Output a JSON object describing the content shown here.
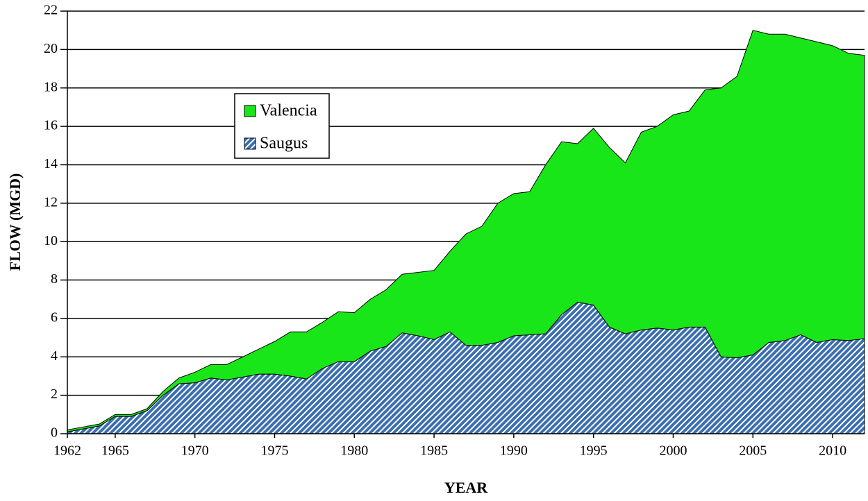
{
  "chart_data": {
    "type": "stacked_area",
    "x_label": "YEAR",
    "y_label": "FLOW (MGD)",
    "x": [
      1962,
      1963,
      1964,
      1965,
      1966,
      1967,
      1968,
      1969,
      1970,
      1971,
      1972,
      1973,
      1974,
      1975,
      1976,
      1977,
      1978,
      1979,
      1980,
      1981,
      1982,
      1983,
      1984,
      1985,
      1986,
      1987,
      1988,
      1989,
      1990,
      1991,
      1992,
      1993,
      1994,
      1995,
      1996,
      1997,
      1998,
      1999,
      2000,
      2001,
      2002,
      2003,
      2004,
      2005,
      2006,
      2007,
      2008,
      2009,
      2010,
      2011,
      2012
    ],
    "series": [
      {
        "name": "Saugus",
        "color": "#3a6eb0",
        "values": [
          0.1,
          0.25,
          0.4,
          0.9,
          0.9,
          1.2,
          2.0,
          2.6,
          2.65,
          2.9,
          2.8,
          2.95,
          3.1,
          3.1,
          3.0,
          2.85,
          3.4,
          3.75,
          3.75,
          4.3,
          4.55,
          5.25,
          5.1,
          4.9,
          5.3,
          4.6,
          4.6,
          4.75,
          5.1,
          5.15,
          5.2,
          6.2,
          6.85,
          6.7,
          5.55,
          5.2,
          5.4,
          5.5,
          5.4,
          5.55,
          5.55,
          4.0,
          3.95,
          4.1,
          4.75,
          4.85,
          5.15,
          4.75,
          4.9,
          4.85,
          4.95
        ]
      },
      {
        "name": "Valencia",
        "color": "#19e619",
        "values": [
          0.1,
          0.1,
          0.1,
          0.1,
          0.1,
          0.1,
          0.2,
          0.3,
          0.55,
          0.7,
          0.8,
          1.05,
          1.3,
          1.7,
          2.3,
          2.45,
          2.4,
          2.6,
          2.55,
          2.7,
          2.95,
          3.05,
          3.3,
          3.6,
          4.2,
          5.8,
          6.2,
          7.25,
          7.4,
          7.45,
          8.8,
          9.0,
          8.25,
          9.2,
          9.35,
          8.9,
          10.3,
          10.5,
          11.2,
          11.25,
          12.35,
          14.0,
          14.65,
          16.9,
          16.05,
          15.95,
          15.45,
          15.65,
          15.3,
          14.95,
          14.75
        ]
      }
    ],
    "xlim": [
      1962,
      2012
    ],
    "xticks": [
      1962,
      1965,
      1970,
      1975,
      1980,
      1985,
      1990,
      1995,
      2000,
      2005,
      2010
    ],
    "ylim": [
      0,
      22
    ],
    "yticks": [
      0,
      2,
      4,
      6,
      8,
      10,
      12,
      14,
      16,
      18,
      20,
      22
    ],
    "grid": true,
    "legend_order": [
      "Valencia",
      "Saugus"
    ]
  }
}
